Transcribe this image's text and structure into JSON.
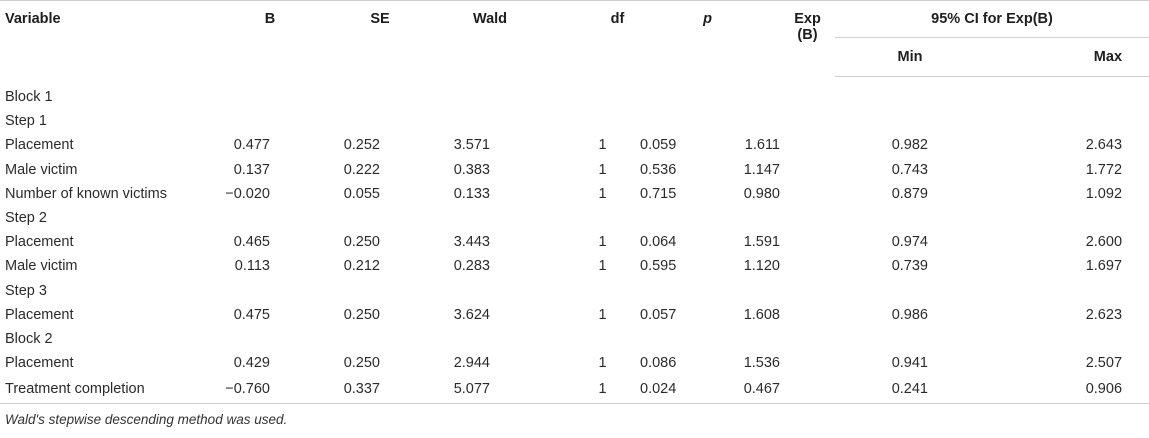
{
  "table": {
    "headers": {
      "variable": "Variable",
      "b": "B",
      "se": "SE",
      "wald": "Wald",
      "df": "df",
      "p": "p",
      "exp_b": "Exp (B)",
      "ci_group": "95% CI for Exp(B)",
      "ci_min": "Min",
      "ci_max": "Max"
    },
    "rows": [
      {
        "type": "group",
        "label": "Block 1"
      },
      {
        "type": "group",
        "label": "Step 1"
      },
      {
        "type": "data",
        "variable": "Placement",
        "b": "0.477",
        "se": "0.252",
        "wald": "3.571",
        "df": "1",
        "p": "0.059",
        "exp_b": "1.611",
        "min": "0.982",
        "max": "2.643"
      },
      {
        "type": "data",
        "variable": "Male victim",
        "b": "0.137",
        "se": "0.222",
        "wald": "0.383",
        "df": "1",
        "p": "0.536",
        "exp_b": "1.147",
        "min": "0.743",
        "max": "1.772"
      },
      {
        "type": "data",
        "variable": "Number of known victims",
        "b": "−0.020",
        "se": "0.055",
        "wald": "0.133",
        "df": "1",
        "p": "0.715",
        "exp_b": "0.980",
        "min": "0.879",
        "max": "1.092"
      },
      {
        "type": "group",
        "label": "Step 2"
      },
      {
        "type": "data",
        "variable": "Placement",
        "b": "0.465",
        "se": "0.250",
        "wald": "3.443",
        "df": "1",
        "p": "0.064",
        "exp_b": "1.591",
        "min": "0.974",
        "max": "2.600"
      },
      {
        "type": "data",
        "variable": "Male victim",
        "b": "0.113",
        "se": "0.212",
        "wald": "0.283",
        "df": "1",
        "p": "0.595",
        "exp_b": "1.120",
        "min": "0.739",
        "max": "1.697"
      },
      {
        "type": "group",
        "label": "Step 3"
      },
      {
        "type": "data",
        "variable": "Placement",
        "b": "0.475",
        "se": "0.250",
        "wald": "3.624",
        "df": "1",
        "p": "0.057",
        "exp_b": "1.608",
        "min": "0.986",
        "max": "2.623"
      },
      {
        "type": "group",
        "label": "Block 2"
      },
      {
        "type": "data",
        "variable": "Placement",
        "b": "0.429",
        "se": "0.250",
        "wald": "2.944",
        "df": "1",
        "p": "0.086",
        "exp_b": "1.536",
        "min": "0.941",
        "max": "2.507"
      },
      {
        "type": "data",
        "variable": "Treatment completion",
        "b": "−0.760",
        "se": "0.337",
        "wald": "5.077",
        "df": "1",
        "p": "0.024",
        "exp_b": "0.467",
        "min": "0.241",
        "max": "0.906"
      }
    ]
  },
  "footnote": "Wald's stepwise descending method was used."
}
